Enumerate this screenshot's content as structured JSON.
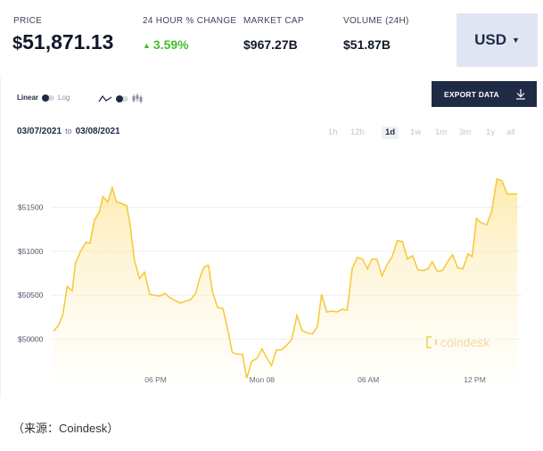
{
  "stats": {
    "price": {
      "label": "PRICE",
      "currency": "$",
      "value": "51,871.13"
    },
    "change": {
      "label": "24 HOUR % CHANGE",
      "value": "3.59%"
    },
    "market_cap": {
      "label": "MARKET CAP",
      "value": "$967.27B"
    },
    "volume": {
      "label": "VOLUME (24H)",
      "value": "$51.87B"
    }
  },
  "currency_selector": {
    "value": "USD"
  },
  "toggles": {
    "scale": {
      "left": "Linear",
      "right": "Log"
    }
  },
  "export_button": {
    "label": "EXPORT DATA"
  },
  "date_range": {
    "from": "03/07/2021",
    "to_word": "to",
    "to": "03/08/2021"
  },
  "ranges": [
    "1h",
    "12h",
    "1d",
    "1w",
    "1m",
    "3m",
    "1y",
    "all"
  ],
  "active_range": "1d",
  "watermark": "coindesk",
  "caption": "（来源：Coindesk）",
  "colors": {
    "line": "#f6c833",
    "area_top": "#fde9a6",
    "accent_up": "#3fbf26",
    "button_bg": "#1f2a44"
  },
  "chart_data": {
    "type": "area",
    "y_ticks": [
      {
        "value": 50000,
        "label": "$50000"
      },
      {
        "value": 50500,
        "label": "$50500"
      },
      {
        "value": 51000,
        "label": "$51000"
      },
      {
        "value": 51500,
        "label": "$51500"
      }
    ],
    "x_ticks": [
      {
        "t": 0.24,
        "label": "06 PM"
      },
      {
        "t": 0.49,
        "label": "Mon 08"
      },
      {
        "t": 0.74,
        "label": "06 AM"
      },
      {
        "t": 0.99,
        "label": "12 PM"
      }
    ],
    "ylim": [
      49500,
      51950
    ],
    "xlim": [
      0,
      1.1
    ],
    "grid": true,
    "values": [
      [
        0.0,
        50090
      ],
      [
        0.012,
        50160
      ],
      [
        0.022,
        50280
      ],
      [
        0.032,
        50600
      ],
      [
        0.044,
        50550
      ],
      [
        0.052,
        50870
      ],
      [
        0.064,
        51000
      ],
      [
        0.076,
        51100
      ],
      [
        0.086,
        51090
      ],
      [
        0.096,
        51350
      ],
      [
        0.108,
        51450
      ],
      [
        0.116,
        51620
      ],
      [
        0.128,
        51560
      ],
      [
        0.138,
        51720
      ],
      [
        0.148,
        51560
      ],
      [
        0.16,
        51540
      ],
      [
        0.172,
        51520
      ],
      [
        0.18,
        51300
      ],
      [
        0.19,
        50900
      ],
      [
        0.202,
        50690
      ],
      [
        0.214,
        50760
      ],
      [
        0.226,
        50510
      ],
      [
        0.238,
        50500
      ],
      [
        0.25,
        50490
      ],
      [
        0.262,
        50520
      ],
      [
        0.274,
        50470
      ],
      [
        0.286,
        50440
      ],
      [
        0.298,
        50410
      ],
      [
        0.31,
        50430
      ],
      [
        0.322,
        50450
      ],
      [
        0.334,
        50520
      ],
      [
        0.344,
        50700
      ],
      [
        0.354,
        50820
      ],
      [
        0.364,
        50840
      ],
      [
        0.374,
        50530
      ],
      [
        0.386,
        50360
      ],
      [
        0.398,
        50350
      ],
      [
        0.41,
        50100
      ],
      [
        0.42,
        49850
      ],
      [
        0.432,
        49830
      ],
      [
        0.444,
        49830
      ],
      [
        0.454,
        49560
      ],
      [
        0.466,
        49750
      ],
      [
        0.478,
        49780
      ],
      [
        0.49,
        49890
      ],
      [
        0.5,
        49800
      ],
      [
        0.512,
        49700
      ],
      [
        0.524,
        49880
      ],
      [
        0.536,
        49880
      ],
      [
        0.548,
        49930
      ],
      [
        0.56,
        50000
      ],
      [
        0.572,
        50270
      ],
      [
        0.584,
        50100
      ],
      [
        0.596,
        50070
      ],
      [
        0.608,
        50060
      ],
      [
        0.62,
        50140
      ],
      [
        0.63,
        50510
      ],
      [
        0.642,
        50310
      ],
      [
        0.654,
        50320
      ],
      [
        0.666,
        50310
      ],
      [
        0.678,
        50340
      ],
      [
        0.69,
        50330
      ],
      [
        0.702,
        50800
      ],
      [
        0.714,
        50930
      ],
      [
        0.726,
        50910
      ],
      [
        0.738,
        50800
      ],
      [
        0.748,
        50910
      ],
      [
        0.76,
        50910
      ],
      [
        0.772,
        50720
      ],
      [
        0.784,
        50850
      ],
      [
        0.796,
        50940
      ],
      [
        0.808,
        51120
      ],
      [
        0.82,
        51110
      ],
      [
        0.832,
        50910
      ],
      [
        0.844,
        50950
      ],
      [
        0.856,
        50790
      ],
      [
        0.868,
        50780
      ],
      [
        0.88,
        50800
      ],
      [
        0.89,
        50880
      ],
      [
        0.902,
        50770
      ],
      [
        0.914,
        50780
      ],
      [
        0.926,
        50880
      ],
      [
        0.938,
        50960
      ],
      [
        0.95,
        50810
      ],
      [
        0.962,
        50800
      ],
      [
        0.974,
        50970
      ],
      [
        0.984,
        50940
      ],
      [
        0.994,
        51370
      ],
      [
        1.006,
        51320
      ],
      [
        1.018,
        51300
      ],
      [
        1.03,
        51460
      ],
      [
        1.042,
        51820
      ],
      [
        1.054,
        51800
      ],
      [
        1.066,
        51650
      ],
      [
        1.078,
        51650
      ],
      [
        1.09,
        51650
      ]
    ]
  }
}
